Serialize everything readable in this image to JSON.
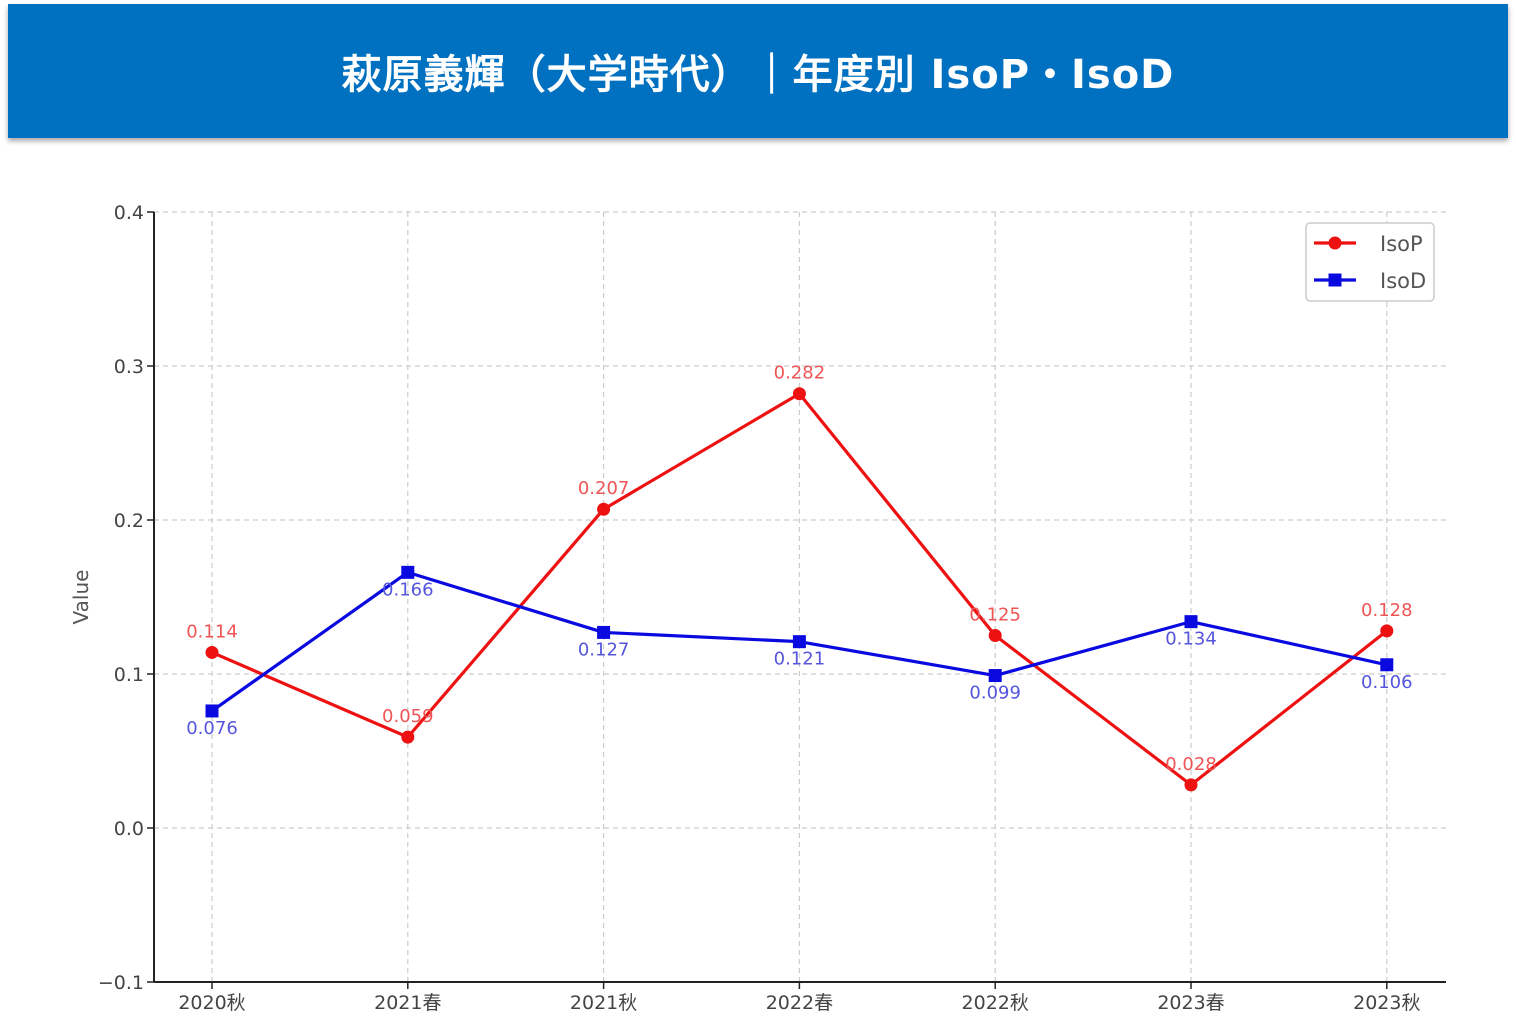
{
  "title": "萩原義輝（大学時代）｜年度別 IsoP・IsoD",
  "chart_data": {
    "type": "line",
    "categories": [
      "2020秋",
      "2021春",
      "2021秋",
      "2022春",
      "2022秋",
      "2023春",
      "2023秋"
    ],
    "series": [
      {
        "name": "IsoP",
        "values": [
          0.114,
          0.059,
          0.207,
          0.282,
          0.125,
          0.028,
          0.128
        ],
        "labels": [
          "0.114",
          "0.059",
          "0.207",
          "0.282",
          "0.125",
          "0.028",
          "0.128"
        ],
        "color": "#ee1111",
        "label_color": "#ee5555",
        "marker": "circle",
        "label_position": "above"
      },
      {
        "name": "IsoD",
        "values": [
          0.076,
          0.166,
          0.127,
          0.121,
          0.099,
          0.134,
          0.106
        ],
        "labels": [
          "0.076",
          "0.166",
          "0.127",
          "0.121",
          "0.099",
          "0.134",
          "0.106"
        ],
        "color": "#0a0ae0",
        "label_color": "#5555dd",
        "marker": "square",
        "label_position": "below"
      }
    ],
    "ylabel": "Value",
    "xlabel": "",
    "ylim": [
      -0.1,
      0.4
    ],
    "yticks": [
      -0.1,
      0.0,
      0.1,
      0.2,
      0.3,
      0.4
    ],
    "ytick_labels": [
      "−0.1",
      "0.0",
      "0.1",
      "0.2",
      "0.3",
      "0.4"
    ],
    "grid": true,
    "legend": "top-right"
  }
}
